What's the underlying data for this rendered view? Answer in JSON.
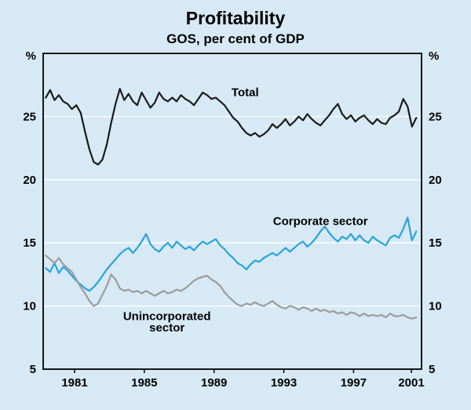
{
  "chart_data": {
    "type": "line",
    "title": "Profitability",
    "subtitle": "GOS, per cent of GDP",
    "unit_label": "%",
    "background_color": "#d7e9f4",
    "grid_color": "#ffffff",
    "frame_color": "#000000",
    "x_start": 1979.75,
    "x_step": 0.25,
    "xlim": [
      1979.6,
      2001.3
    ],
    "ylim": [
      5,
      30
    ],
    "yticks": [
      5,
      10,
      15,
      20,
      25
    ],
    "gridlines": [
      10,
      15,
      20,
      25
    ],
    "xticks": [
      1981,
      1985,
      1989,
      1993,
      1997,
      2001
    ],
    "legend_position": "inline-annotations",
    "series": [
      {
        "name": "Total",
        "color": "#1a1a1a",
        "values": [
          26.5,
          27.1,
          26.3,
          26.7,
          26.2,
          26.0,
          25.6,
          25.9,
          25.3,
          23.8,
          22.4,
          21.4,
          21.2,
          21.6,
          22.8,
          24.5,
          26.0,
          27.2,
          26.3,
          26.8,
          26.2,
          25.9,
          26.9,
          26.3,
          25.7,
          26.1,
          26.9,
          26.4,
          26.2,
          26.5,
          26.2,
          26.7,
          26.4,
          26.2,
          25.9,
          26.4,
          26.9,
          26.7,
          26.4,
          26.5,
          26.2,
          25.9,
          25.4,
          24.9,
          24.6,
          24.1,
          23.7,
          23.5,
          23.7,
          23.4,
          23.6,
          23.9,
          24.4,
          24.1,
          24.4,
          24.8,
          24.3,
          24.6,
          25.0,
          24.7,
          25.2,
          24.8,
          24.5,
          24.3,
          24.7,
          25.1,
          25.6,
          26.0,
          25.2,
          24.8,
          25.1,
          24.6,
          24.9,
          25.1,
          24.7,
          24.4,
          24.8,
          24.5,
          24.4,
          24.9,
          25.1,
          25.4,
          26.4,
          25.8,
          24.2,
          24.9
        ]
      },
      {
        "name": "Corporate sector",
        "color": "#29a3dc",
        "values": [
          13.0,
          12.7,
          13.4,
          12.6,
          13.1,
          12.8,
          12.4,
          12.0,
          11.7,
          11.4,
          11.2,
          11.5,
          11.9,
          12.4,
          12.9,
          13.3,
          13.7,
          14.1,
          14.4,
          14.6,
          14.2,
          14.6,
          15.1,
          15.7,
          14.9,
          14.5,
          14.3,
          14.7,
          15.0,
          14.6,
          15.1,
          14.8,
          14.5,
          14.7,
          14.4,
          14.8,
          15.1,
          14.9,
          15.1,
          15.3,
          14.8,
          14.5,
          14.1,
          13.8,
          13.4,
          13.2,
          12.9,
          13.3,
          13.6,
          13.5,
          13.8,
          14.0,
          14.2,
          14.0,
          14.3,
          14.6,
          14.3,
          14.6,
          14.9,
          15.1,
          14.7,
          15.0,
          15.4,
          15.9,
          16.3,
          15.8,
          15.4,
          15.1,
          15.5,
          15.3,
          15.7,
          15.2,
          15.6,
          15.2,
          15.0,
          15.5,
          15.2,
          15.0,
          14.8,
          15.4,
          15.6,
          15.4,
          16.1,
          17.0,
          15.2,
          15.9
        ]
      },
      {
        "name": "Unincorporated sector",
        "color": "#9c9c9c",
        "values": [
          14.0,
          13.7,
          13.4,
          13.8,
          13.3,
          13.0,
          12.7,
          12.1,
          11.5,
          11.0,
          10.4,
          10.0,
          10.2,
          10.9,
          11.6,
          12.5,
          12.1,
          11.4,
          11.2,
          11.3,
          11.1,
          11.2,
          11.0,
          11.2,
          11.0,
          10.8,
          11.0,
          11.2,
          11.0,
          11.1,
          11.3,
          11.2,
          11.4,
          11.7,
          12.0,
          12.2,
          12.3,
          12.4,
          12.1,
          11.9,
          11.6,
          11.1,
          10.7,
          10.4,
          10.1,
          10.0,
          10.2,
          10.1,
          10.3,
          10.1,
          10.0,
          10.2,
          10.4,
          10.1,
          9.9,
          9.8,
          10.0,
          9.9,
          9.7,
          9.9,
          9.8,
          9.6,
          9.8,
          9.6,
          9.7,
          9.5,
          9.6,
          9.4,
          9.5,
          9.3,
          9.5,
          9.4,
          9.2,
          9.4,
          9.2,
          9.3,
          9.2,
          9.3,
          9.1,
          9.4,
          9.2,
          9.2,
          9.3,
          9.1,
          9.0,
          9.1
        ]
      }
    ],
    "annotations": [
      {
        "text": "Total",
        "x": 1990.4,
        "y": 26.6,
        "anchor": "start",
        "color": "#000000"
      },
      {
        "text": "Corporate sector",
        "x": 1995.5,
        "y": 16.4,
        "anchor": "middle",
        "color": "#000000"
      },
      {
        "text": "Unincorporated",
        "x": 1986.7,
        "y": 8.9,
        "anchor": "middle",
        "color": "#000000"
      },
      {
        "text": "sector",
        "x": 1986.7,
        "y": 8.0,
        "anchor": "middle",
        "color": "#000000"
      }
    ]
  }
}
